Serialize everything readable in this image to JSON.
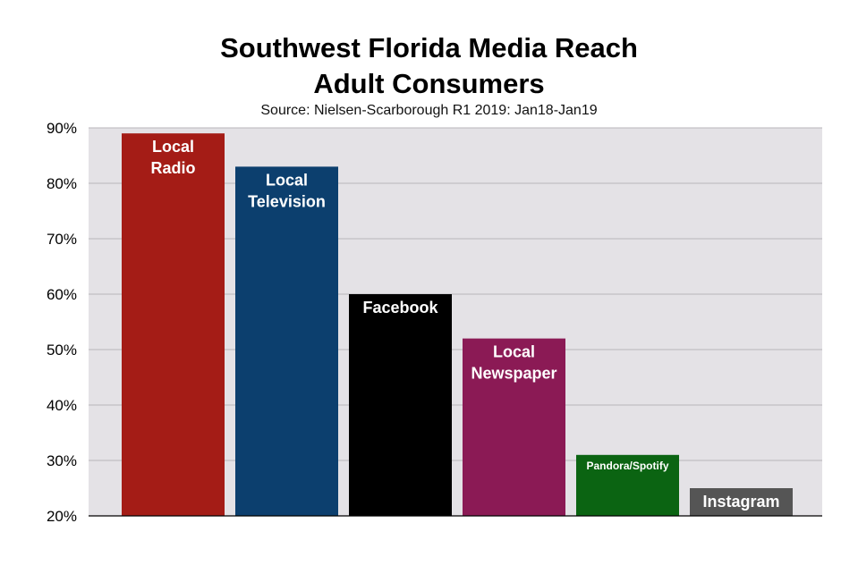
{
  "chart_data": {
    "type": "bar",
    "title_lines": [
      "Southwest Florida Media Reach",
      "Adult Consumers"
    ],
    "subtitle": "Source: Nielsen-Scarborough R1 2019: Jan18-Jan19",
    "categories": [
      {
        "label_lines": [
          "Local",
          "Radio"
        ],
        "color": "#a41c16"
      },
      {
        "label_lines": [
          "Local",
          "Television"
        ],
        "color": "#0c3f6e"
      },
      {
        "label_lines": [
          "Facebook"
        ],
        "color": "#000000"
      },
      {
        "label_lines": [
          "Local",
          "Newspaper"
        ],
        "color": "#8b1a55"
      },
      {
        "label_lines": [
          "Pandora/Spotify"
        ],
        "color": "#0b6412"
      },
      {
        "label_lines": [
          "Instagram"
        ],
        "color": "#555555"
      }
    ],
    "values": [
      89,
      83,
      60,
      52,
      31,
      25
    ],
    "ylim": [
      20,
      90
    ],
    "yticks": [
      20,
      30,
      40,
      50,
      60,
      70,
      80,
      90
    ],
    "ytick_suffix": "%",
    "grid": true,
    "plot_background": "#e4e2e6",
    "grid_color": "#b8b6bb",
    "xlabel": "",
    "ylabel": ""
  }
}
